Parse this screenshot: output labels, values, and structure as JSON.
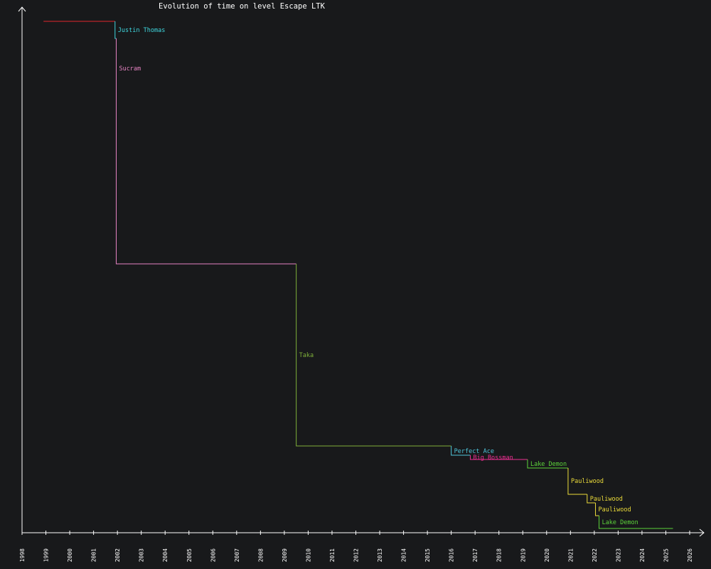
{
  "chart_data": {
    "type": "line",
    "title": "Evolution of time on level Escape LTK",
    "xlabel": "",
    "ylabel": "",
    "x_ticks": [
      "1998",
      "1999",
      "2000",
      "2001",
      "2002",
      "2003",
      "2004",
      "2005",
      "2006",
      "2007",
      "2008",
      "2009",
      "2010",
      "2011",
      "2012",
      "2013",
      "2014",
      "2015",
      "2016",
      "2017",
      "2018",
      "2019",
      "2020",
      "2021",
      "2022",
      "2023",
      "2024",
      "2025",
      "2026"
    ],
    "xlim": [
      1998,
      2026
    ],
    "y_axis_labels": "none",
    "background": "#18191b",
    "axis_color": "#ffffff",
    "grid": false,
    "steps": [
      {
        "holder": "",
        "start": 1998.9,
        "color": "#e0262c"
      },
      {
        "holder": "Justin Thomas",
        "start": 2001.9,
        "color": "#3fd8e0"
      },
      {
        "holder": "Sucram",
        "start": 2001.95,
        "color": "#e884c4"
      },
      {
        "holder": "Taka",
        "start": 2009.5,
        "color": "#7fb03a"
      },
      {
        "holder": "Perfect Ace",
        "start": 2016.0,
        "color": "#4fc6dc"
      },
      {
        "holder": "Big Bossman",
        "start": 2016.8,
        "color": "#ee2f93"
      },
      {
        "holder": "Lake Demon",
        "start": 2019.2,
        "color": "#5cd43a"
      },
      {
        "holder": "Pauliwood",
        "start": 2020.9,
        "color": "#ecdc3a"
      },
      {
        "holder": "Pauliwood",
        "start": 2021.7,
        "color": "#ecdc3a"
      },
      {
        "holder": "Pauliwood",
        "start": 2022.05,
        "color": "#ecdc3a"
      },
      {
        "holder": "Lake Demon",
        "start": 2022.2,
        "color": "#5cd43a"
      }
    ],
    "end": 2025.3
  }
}
